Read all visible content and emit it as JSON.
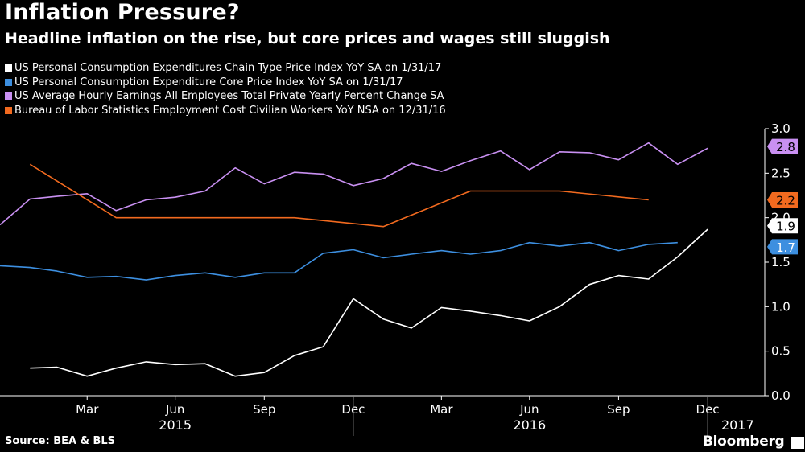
{
  "title": "Inflation Pressure?",
  "subtitle": "Headline inflation on the rise, but core prices and wages still sluggish",
  "source": "Source: BEA & BLS",
  "brand": "Bloomberg",
  "colors": {
    "background": "#000000",
    "axis": "#ffffff"
  },
  "chart_data": {
    "type": "line",
    "grid": false,
    "legend_position": "top-left",
    "ylim": [
      0,
      3.0
    ],
    "yticks": [
      "0.0",
      "0.5",
      "1.0",
      "1.5",
      "2.0",
      "2.5",
      "3.0"
    ],
    "x_range": [
      "2014-12-31",
      "2017-02-28"
    ],
    "x_tick_labels": [
      {
        "label": "Mar",
        "date": "2015-03-31"
      },
      {
        "label": "Jun",
        "date": "2015-06-30"
      },
      {
        "label": "Sep",
        "date": "2015-09-30"
      },
      {
        "label": "Dec",
        "date": "2015-12-31"
      },
      {
        "label": "Mar",
        "date": "2016-03-31"
      },
      {
        "label": "Jun",
        "date": "2016-06-30"
      },
      {
        "label": "Sep",
        "date": "2016-09-30"
      },
      {
        "label": "Dec",
        "date": "2016-12-31"
      }
    ],
    "year_labels": [
      {
        "label": "2015",
        "date": "2015-06-30"
      },
      {
        "label": "2016",
        "date": "2016-06-30"
      },
      {
        "label": "2017",
        "date": "2017-01-31"
      }
    ],
    "series": [
      {
        "name": "US Personal Consumption Expenditures Chain Type Price Index YoY SA  on 1/31/17",
        "color": "#ffffff",
        "last_label": "1.9",
        "label_bg": "#ffffff",
        "label_fg": "#000000",
        "points": [
          [
            "2015-01-31",
            0.31
          ],
          [
            "2015-02-28",
            0.32
          ],
          [
            "2015-03-31",
            0.22
          ],
          [
            "2015-04-30",
            0.31
          ],
          [
            "2015-05-31",
            0.38
          ],
          [
            "2015-06-30",
            0.35
          ],
          [
            "2015-07-31",
            0.36
          ],
          [
            "2015-08-31",
            0.22
          ],
          [
            "2015-09-30",
            0.26
          ],
          [
            "2015-10-31",
            0.45
          ],
          [
            "2015-11-30",
            0.55
          ],
          [
            "2015-12-31",
            1.09
          ],
          [
            "2016-01-31",
            0.86
          ],
          [
            "2016-02-29",
            0.76
          ],
          [
            "2016-03-31",
            0.99
          ],
          [
            "2016-04-30",
            0.95
          ],
          [
            "2016-05-31",
            0.9
          ],
          [
            "2016-06-30",
            0.84
          ],
          [
            "2016-07-31",
            1.0
          ],
          [
            "2016-08-31",
            1.25
          ],
          [
            "2016-09-30",
            1.35
          ],
          [
            "2016-10-31",
            1.31
          ],
          [
            "2016-11-30",
            1.56
          ],
          [
            "2016-12-31",
            1.87
          ]
        ]
      },
      {
        "name": "US Personal Consumption Expenditure Core Price Index YoY SA  on 1/31/17",
        "color": "#3d8fe0",
        "last_label": "1.7",
        "label_bg": "#3d8fe0",
        "label_fg": "#ffffff",
        "points": [
          [
            "2014-12-31",
            1.46
          ],
          [
            "2015-01-31",
            1.44
          ],
          [
            "2015-02-28",
            1.4
          ],
          [
            "2015-03-31",
            1.33
          ],
          [
            "2015-04-30",
            1.34
          ],
          [
            "2015-05-31",
            1.3
          ],
          [
            "2015-06-30",
            1.35
          ],
          [
            "2015-07-31",
            1.38
          ],
          [
            "2015-08-31",
            1.33
          ],
          [
            "2015-09-30",
            1.38
          ],
          [
            "2015-10-31",
            1.38
          ],
          [
            "2015-11-30",
            1.6
          ],
          [
            "2015-12-31",
            1.64
          ],
          [
            "2016-01-31",
            1.55
          ],
          [
            "2016-02-29",
            1.59
          ],
          [
            "2016-03-31",
            1.63
          ],
          [
            "2016-04-30",
            1.59
          ],
          [
            "2016-05-31",
            1.63
          ],
          [
            "2016-06-30",
            1.72
          ],
          [
            "2016-07-31",
            1.68
          ],
          [
            "2016-08-31",
            1.72
          ],
          [
            "2016-09-30",
            1.63
          ],
          [
            "2016-10-31",
            1.7
          ],
          [
            "2016-11-30",
            1.72
          ]
        ]
      },
      {
        "name": "US Average Hourly Earnings All Employees Total Private Yearly Percent Change SA",
        "color": "#c990f2",
        "last_label": "2.8",
        "label_bg": "#c990f2",
        "label_fg": "#000000",
        "points": [
          [
            "2014-12-31",
            1.92
          ],
          [
            "2015-01-31",
            2.21
          ],
          [
            "2015-02-28",
            2.24
          ],
          [
            "2015-03-31",
            2.27
          ],
          [
            "2015-04-30",
            2.08
          ],
          [
            "2015-05-31",
            2.2
          ],
          [
            "2015-06-30",
            2.23
          ],
          [
            "2015-07-31",
            2.3
          ],
          [
            "2015-08-31",
            2.56
          ],
          [
            "2015-09-30",
            2.38
          ],
          [
            "2015-10-31",
            2.51
          ],
          [
            "2015-11-30",
            2.49
          ],
          [
            "2015-12-31",
            2.36
          ],
          [
            "2016-01-31",
            2.44
          ],
          [
            "2016-02-29",
            2.61
          ],
          [
            "2016-03-31",
            2.52
          ],
          [
            "2016-04-30",
            2.64
          ],
          [
            "2016-05-31",
            2.75
          ],
          [
            "2016-06-30",
            2.54
          ],
          [
            "2016-07-31",
            2.74
          ],
          [
            "2016-08-31",
            2.73
          ],
          [
            "2016-09-30",
            2.65
          ],
          [
            "2016-10-31",
            2.84
          ],
          [
            "2016-11-30",
            2.6
          ],
          [
            "2016-12-31",
            2.78
          ]
        ]
      },
      {
        "name": "Bureau of Labor Statistics Employment Cost Civilian Workers YoY NSA  on 12/31/16",
        "color": "#f26a1f",
        "last_label": "2.2",
        "label_bg": "#f26a1f",
        "label_fg": "#000000",
        "points": [
          [
            "2015-01-31",
            2.6
          ],
          [
            "2015-04-30",
            2.0
          ],
          [
            "2015-07-31",
            2.0
          ],
          [
            "2015-10-31",
            2.0
          ],
          [
            "2016-01-31",
            1.9
          ],
          [
            "2016-04-30",
            2.3
          ],
          [
            "2016-07-31",
            2.3
          ],
          [
            "2016-10-31",
            2.2
          ]
        ]
      }
    ]
  }
}
